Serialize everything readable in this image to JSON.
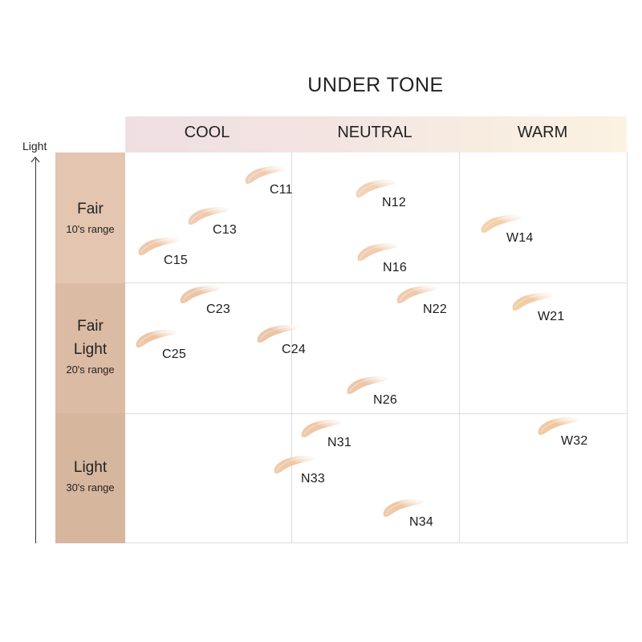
{
  "title": "UNDER TONE",
  "axis_label": "Light",
  "columns": [
    "COOL",
    "NEUTRAL",
    "WARM"
  ],
  "rows": [
    {
      "name_lines": [
        "Fair"
      ],
      "range": "10's range",
      "band_color": "#e3c5b0"
    },
    {
      "name_lines": [
        "Fair",
        "Light"
      ],
      "range": "20's range",
      "band_color": "#dcbba4"
    },
    {
      "name_lines": [
        "Light"
      ],
      "range": "30's range",
      "band_color": "#d7b69e"
    }
  ],
  "shades": [
    {
      "code": "C11",
      "column": "COOL",
      "row": "Fair",
      "color": "#efcbb4"
    },
    {
      "code": "C13",
      "column": "COOL",
      "row": "Fair",
      "color": "#efc9ae"
    },
    {
      "code": "C15",
      "column": "COOL",
      "row": "Fair",
      "color": "#efc6a8"
    },
    {
      "code": "N12",
      "column": "NEUTRAL",
      "row": "Fair",
      "color": "#f2d0b4"
    },
    {
      "code": "N16",
      "column": "NEUTRAL",
      "row": "Fair",
      "color": "#f0cbad"
    },
    {
      "code": "W14",
      "column": "WARM",
      "row": "Fair",
      "color": "#f2cfa8"
    },
    {
      "code": "C23",
      "column": "COOL",
      "row": "Fair Light",
      "color": "#ecc4a6"
    },
    {
      "code": "C25",
      "column": "COOL",
      "row": "Fair Light",
      "color": "#edc5a6"
    },
    {
      "code": "C24",
      "column": "COOL",
      "row": "Fair Light",
      "color": "#ebc3a4"
    },
    {
      "code": "N22",
      "column": "NEUTRAL",
      "row": "Fair Light",
      "color": "#efc9ab"
    },
    {
      "code": "N26",
      "column": "NEUTRAL",
      "row": "Fair Light",
      "color": "#edc6a6"
    },
    {
      "code": "W21",
      "column": "WARM",
      "row": "Fair Light",
      "color": "#f1cca4"
    },
    {
      "code": "N31",
      "column": "NEUTRAL",
      "row": "Light",
      "color": "#eec7a6"
    },
    {
      "code": "N33",
      "column": "NEUTRAL",
      "row": "Light",
      "color": "#efc8a7"
    },
    {
      "code": "N34",
      "column": "NEUTRAL",
      "row": "Light",
      "color": "#eec7a7"
    },
    {
      "code": "W32",
      "column": "WARM",
      "row": "Light",
      "color": "#f0c89e"
    }
  ]
}
